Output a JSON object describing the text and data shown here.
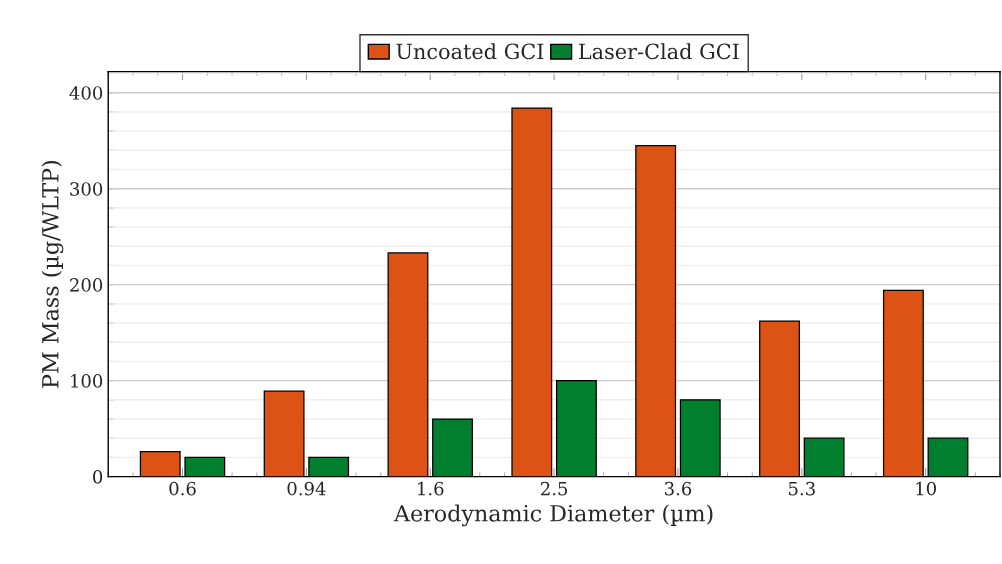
{
  "chart_data": {
    "type": "bar",
    "xlabel": "Aerodynamic Diameter (µm)",
    "ylabel": "PM Mass (µg/WLTP)",
    "categories": [
      "0.6",
      "0.94",
      "1.6",
      "2.5",
      "3.6",
      "5.3",
      "10"
    ],
    "series": [
      {
        "name": "Uncoated GCI",
        "color": "#dd5215",
        "values": [
          26,
          89,
          233,
          384,
          345,
          162,
          194
        ]
      },
      {
        "name": "Laser-Clad GCI",
        "color": "#00802f",
        "values": [
          20,
          20,
          60,
          100,
          80,
          40,
          40
        ]
      }
    ],
    "ylim": [
      0,
      422
    ],
    "yticks": [
      0,
      {
        "value": 20,
        "label": null
      },
      {
        "value": 40,
        "label": null
      },
      {
        "value": 60,
        "label": null
      },
      {
        "value": 80,
        "label": null
      },
      100,
      {
        "value": 120,
        "label": null
      },
      {
        "value": 140,
        "label": null
      },
      {
        "value": 160,
        "label": null
      },
      {
        "value": 180,
        "label": null
      },
      200,
      {
        "value": 220,
        "label": null
      },
      {
        "value": 240,
        "label": null
      },
      {
        "value": 260,
        "label": null
      },
      {
        "value": 280,
        "label": null
      },
      300,
      {
        "value": 320,
        "label": null
      },
      {
        "value": 340,
        "label": null
      },
      {
        "value": 360,
        "label": null
      },
      {
        "value": 380,
        "label": null
      },
      400,
      {
        "value": 420,
        "label": null
      }
    ],
    "grid": "y",
    "legend": "top"
  }
}
